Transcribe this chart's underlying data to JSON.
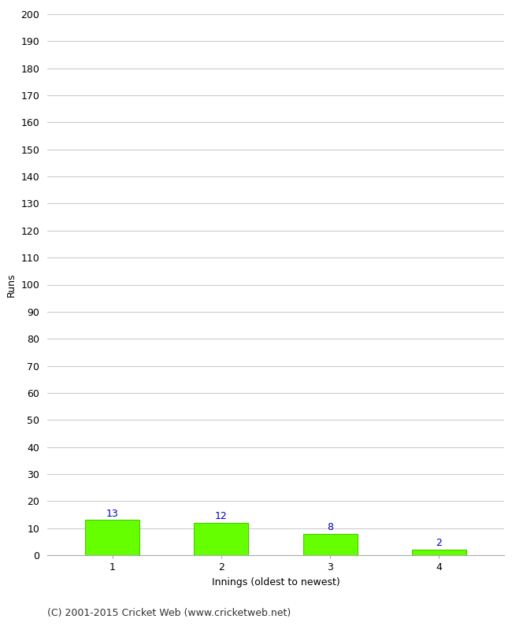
{
  "categories": [
    "1",
    "2",
    "3",
    "4"
  ],
  "values": [
    13,
    12,
    8,
    2
  ],
  "bar_color": "#66ff00",
  "bar_edge_color": "#44cc00",
  "value_color": "#0000cc",
  "xlabel": "Innings (oldest to newest)",
  "ylabel": "Runs",
  "ylim": [
    0,
    200
  ],
  "ytick_step": 10,
  "title": "",
  "footer": "(C) 2001-2015 Cricket Web (www.cricketweb.net)",
  "background_color": "#ffffff",
  "grid_color": "#cccccc",
  "value_fontsize": 9,
  "label_fontsize": 9,
  "tick_fontsize": 9,
  "footer_fontsize": 9
}
